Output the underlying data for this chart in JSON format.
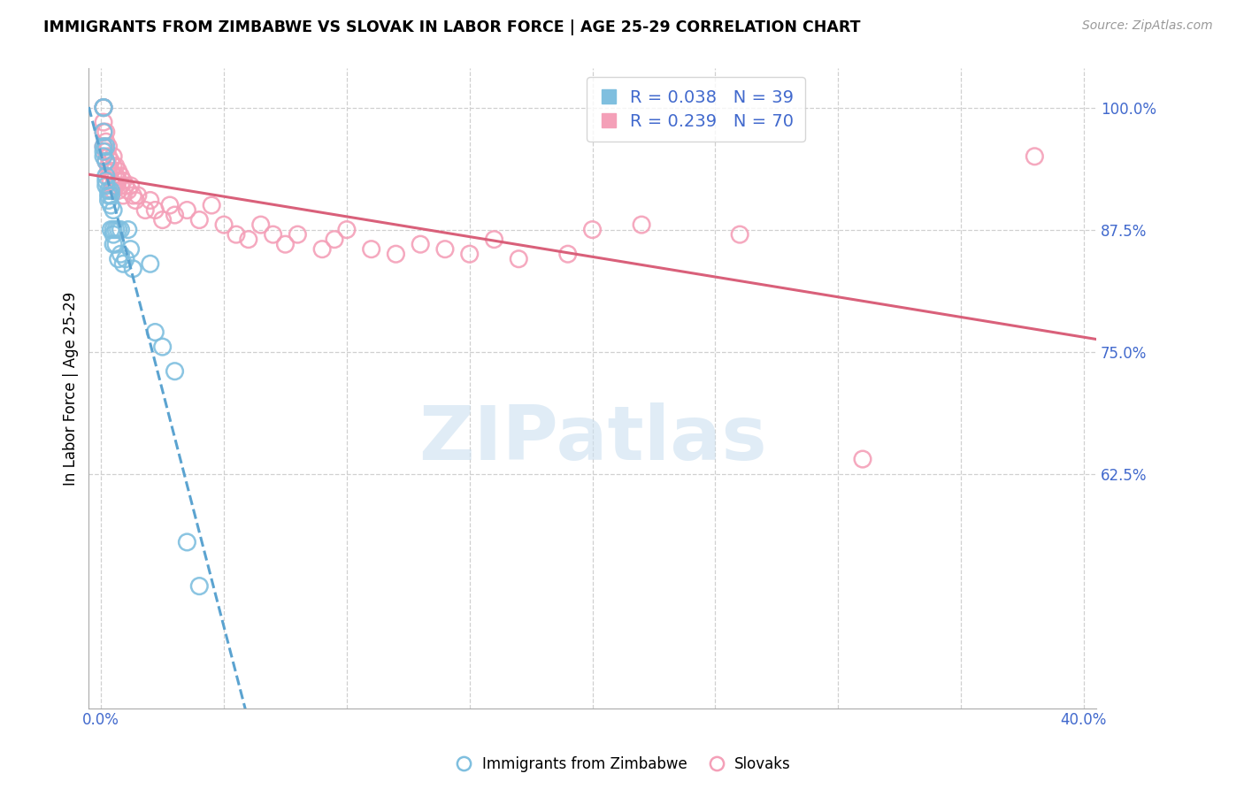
{
  "title": "IMMIGRANTS FROM ZIMBABWE VS SLOVAK IN LABOR FORCE | AGE 25-29 CORRELATION CHART",
  "source": "Source: ZipAtlas.com",
  "ylabel": "In Labor Force | Age 25-29",
  "xlim": [
    -0.005,
    0.405
  ],
  "ylim": [
    0.385,
    1.04
  ],
  "xticks": [
    0.0,
    0.05,
    0.1,
    0.15,
    0.2,
    0.25,
    0.3,
    0.35,
    0.4
  ],
  "xticklabels": [
    "0.0%",
    "",
    "",
    "",
    "",
    "",
    "",
    "",
    "40.0%"
  ],
  "yticks": [
    0.625,
    0.75,
    0.875,
    1.0
  ],
  "yticklabels": [
    "62.5%",
    "75.0%",
    "87.5%",
    "100.0%"
  ],
  "legend_r_zimbabwe": "R = 0.038",
  "legend_n_zimbabwe": "N = 39",
  "legend_r_slovak": "R = 0.239",
  "legend_n_slovak": "N = 70",
  "color_zimbabwe": "#7fbfdf",
  "color_slovak": "#f4a0b8",
  "color_trend_zimbabwe": "#5ba3d0",
  "color_trend_slovak": "#d9607a",
  "color_axis": "#4169cd",
  "color_grid": "#d0d0d0",
  "watermark": "ZIPatlas",
  "zimbabwe_x": [
    0.001,
    0.001,
    0.001,
    0.001,
    0.001,
    0.001,
    0.002,
    0.002,
    0.002,
    0.002,
    0.002,
    0.003,
    0.003,
    0.003,
    0.004,
    0.004,
    0.004,
    0.004,
    0.005,
    0.005,
    0.005,
    0.005,
    0.006,
    0.006,
    0.007,
    0.007,
    0.008,
    0.008,
    0.009,
    0.01,
    0.011,
    0.012,
    0.013,
    0.02,
    0.022,
    0.025,
    0.03,
    0.035,
    0.04
  ],
  "zimbabwe_y": [
    1.0,
    1.0,
    0.975,
    0.96,
    0.955,
    0.95,
    0.96,
    0.945,
    0.93,
    0.925,
    0.92,
    0.915,
    0.91,
    0.905,
    0.915,
    0.91,
    0.9,
    0.875,
    0.895,
    0.875,
    0.87,
    0.86,
    0.875,
    0.86,
    0.875,
    0.845,
    0.875,
    0.85,
    0.84,
    0.845,
    0.875,
    0.855,
    0.835,
    0.84,
    0.77,
    0.755,
    0.73,
    0.555,
    0.51
  ],
  "slovak_x": [
    0.001,
    0.001,
    0.001,
    0.001,
    0.001,
    0.001,
    0.002,
    0.002,
    0.002,
    0.002,
    0.003,
    0.003,
    0.003,
    0.003,
    0.004,
    0.004,
    0.004,
    0.005,
    0.005,
    0.005,
    0.005,
    0.005,
    0.006,
    0.006,
    0.006,
    0.007,
    0.007,
    0.007,
    0.008,
    0.008,
    0.009,
    0.009,
    0.01,
    0.011,
    0.012,
    0.013,
    0.014,
    0.015,
    0.018,
    0.02,
    0.022,
    0.025,
    0.028,
    0.03,
    0.035,
    0.04,
    0.045,
    0.05,
    0.055,
    0.06,
    0.065,
    0.07,
    0.075,
    0.08,
    0.09,
    0.095,
    0.1,
    0.11,
    0.12,
    0.13,
    0.14,
    0.15,
    0.16,
    0.17,
    0.19,
    0.2,
    0.22,
    0.26,
    0.31,
    0.38
  ],
  "slovak_y": [
    1.0,
    1.0,
    1.0,
    0.985,
    0.975,
    0.96,
    0.975,
    0.965,
    0.955,
    0.945,
    0.96,
    0.95,
    0.94,
    0.935,
    0.945,
    0.935,
    0.925,
    0.95,
    0.94,
    0.93,
    0.92,
    0.915,
    0.94,
    0.93,
    0.92,
    0.935,
    0.925,
    0.915,
    0.93,
    0.92,
    0.925,
    0.91,
    0.92,
    0.915,
    0.92,
    0.91,
    0.905,
    0.91,
    0.895,
    0.905,
    0.895,
    0.885,
    0.9,
    0.89,
    0.895,
    0.885,
    0.9,
    0.88,
    0.87,
    0.865,
    0.88,
    0.87,
    0.86,
    0.87,
    0.855,
    0.865,
    0.875,
    0.855,
    0.85,
    0.86,
    0.855,
    0.85,
    0.865,
    0.845,
    0.85,
    0.875,
    0.88,
    0.87,
    0.64,
    0.95
  ]
}
